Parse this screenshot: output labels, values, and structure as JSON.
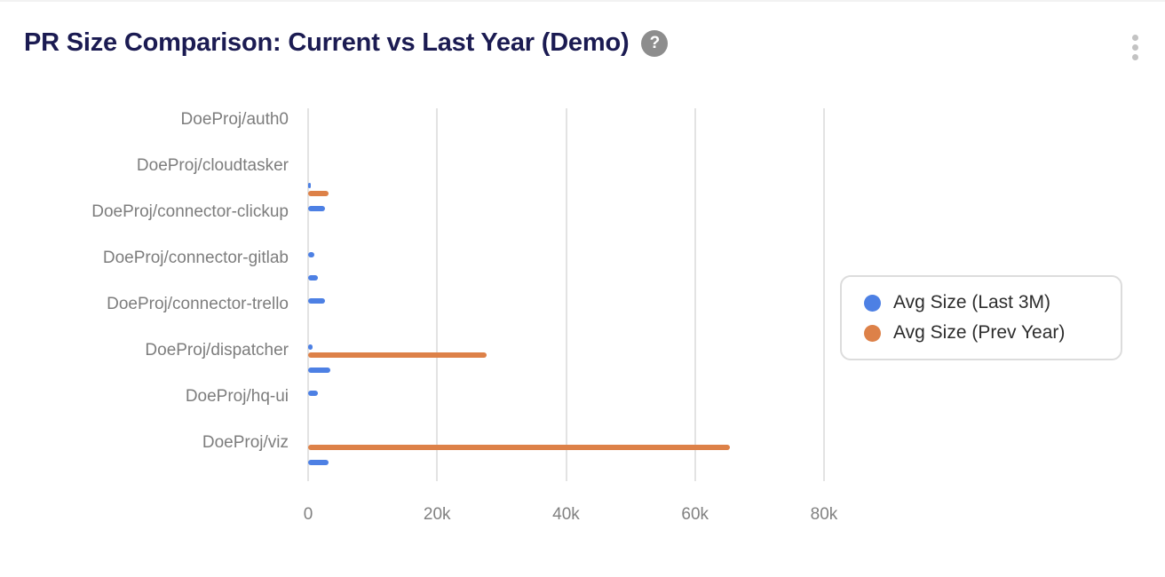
{
  "header": {
    "title": "PR Size Comparison: Current vs Last Year (Demo)",
    "help_glyph": "?"
  },
  "colors": {
    "series_last3m": "#4d80e4",
    "series_prev_year": "#dd8148",
    "title_text": "#1b1b52",
    "axis_label": "#7d7d7d",
    "gridline": "#e3e3e3",
    "legend_border": "#dcdcdc",
    "legend_text": "#2d2d2d",
    "help_icon_bg": "#8d8d8d",
    "menu_icon_dots": "#c3c3c3"
  },
  "legend": {
    "position": "right-middle",
    "items": [
      {
        "label": "Avg Size (Last 3M)",
        "color": "#4d80e4"
      },
      {
        "label": "Avg Size (Prev Year)",
        "color": "#dd8148"
      }
    ]
  },
  "chart_data": {
    "type": "bar",
    "orientation": "horizontal",
    "title": "PR Size Comparison: Current vs Last Year (Demo)",
    "xlabel": "",
    "ylabel": "",
    "grid": "vertical-only",
    "xlim": [
      0,
      80000
    ],
    "x_tick_values": [
      0,
      20000,
      40000,
      60000,
      80000
    ],
    "x_tick_labels": [
      "0",
      "20k",
      "40k",
      "60k",
      "80k"
    ],
    "categories": [
      "DoeProj/auth0",
      "",
      "DoeProj/cloudtasker",
      "",
      "DoeProj/connector-clickup",
      "",
      "DoeProj/connector-gitlab",
      "",
      "DoeProj/connector-trello",
      "",
      "DoeProj/dispatcher",
      "",
      "DoeProj/hq-ui",
      "",
      "DoeProj/viz",
      ""
    ],
    "series": [
      {
        "name": "Avg Size (Last 3M)",
        "color": "#4d80e4",
        "values": [
          0,
          0,
          0,
          400,
          2600,
          0,
          1000,
          1500,
          2600,
          0,
          650,
          3500,
          1500,
          0,
          0,
          3100
        ]
      },
      {
        "name": "Avg Size (Prev Year)",
        "color": "#dd8148",
        "values": [
          0,
          0,
          0,
          3200,
          0,
          0,
          0,
          0,
          0,
          0,
          27700,
          0,
          0,
          0,
          65400,
          0
        ]
      }
    ]
  }
}
